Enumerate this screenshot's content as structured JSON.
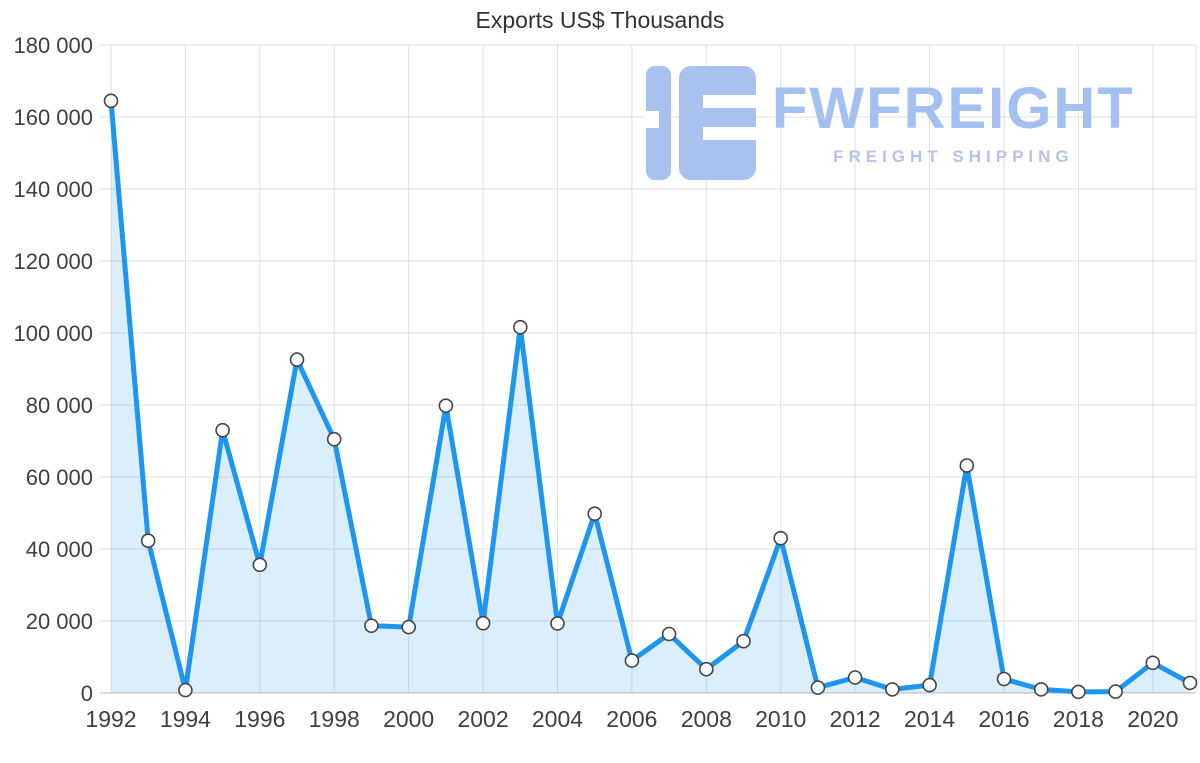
{
  "chart_data": {
    "type": "area",
    "title": "Exports US$ Thousands",
    "x": [
      1992,
      1993,
      1994,
      1995,
      1996,
      1997,
      1998,
      1999,
      2000,
      2001,
      2002,
      2003,
      2004,
      2005,
      2006,
      2007,
      2008,
      2009,
      2010,
      2011,
      2012,
      2013,
      2014,
      2015,
      2016,
      2017,
      2018,
      2019,
      2020,
      2021
    ],
    "values": [
      164500,
      42300,
      800,
      73000,
      35600,
      92600,
      70500,
      18700,
      18300,
      79800,
      19400,
      101600,
      19300,
      49800,
      9000,
      16400,
      6600,
      14400,
      43000,
      1500,
      4300,
      1000,
      2200,
      63200,
      3900,
      1000,
      300,
      400,
      8400,
      2800
    ],
    "ylim": [
      0,
      180000
    ],
    "yticks": [
      0,
      20000,
      40000,
      60000,
      80000,
      100000,
      120000,
      140000,
      160000,
      180000
    ],
    "ytick_labels": [
      "0",
      "20 000",
      "40 000",
      "60 000",
      "80 000",
      "100 000",
      "120 000",
      "140 000",
      "160 000",
      "180 000"
    ],
    "xtick_positions": [
      0,
      2,
      4,
      6,
      8,
      10,
      12,
      14,
      16,
      18,
      20,
      22,
      24,
      26,
      28
    ],
    "xtick_labels": [
      "1992",
      "1994",
      "1996",
      "1998",
      "2000",
      "2002",
      "2004",
      "2006",
      "2008",
      "2010",
      "2012",
      "2014",
      "2016",
      "2018",
      "2020"
    ],
    "grid": true,
    "legend_position": "none",
    "line_color": "#1e96f0",
    "area_color": "rgba(30,150,240,0.16)",
    "marker_fill": "#ffffff",
    "marker_stroke": "#444444",
    "grid_color": "#e0e0e0",
    "axis_line_color": "#bdbdbd",
    "tick_text_color": "#404040"
  },
  "watermark": {
    "brand": "FWFREIGHT",
    "tagline": "FREIGHT SHIPPING",
    "color": "#a2c0f0"
  }
}
